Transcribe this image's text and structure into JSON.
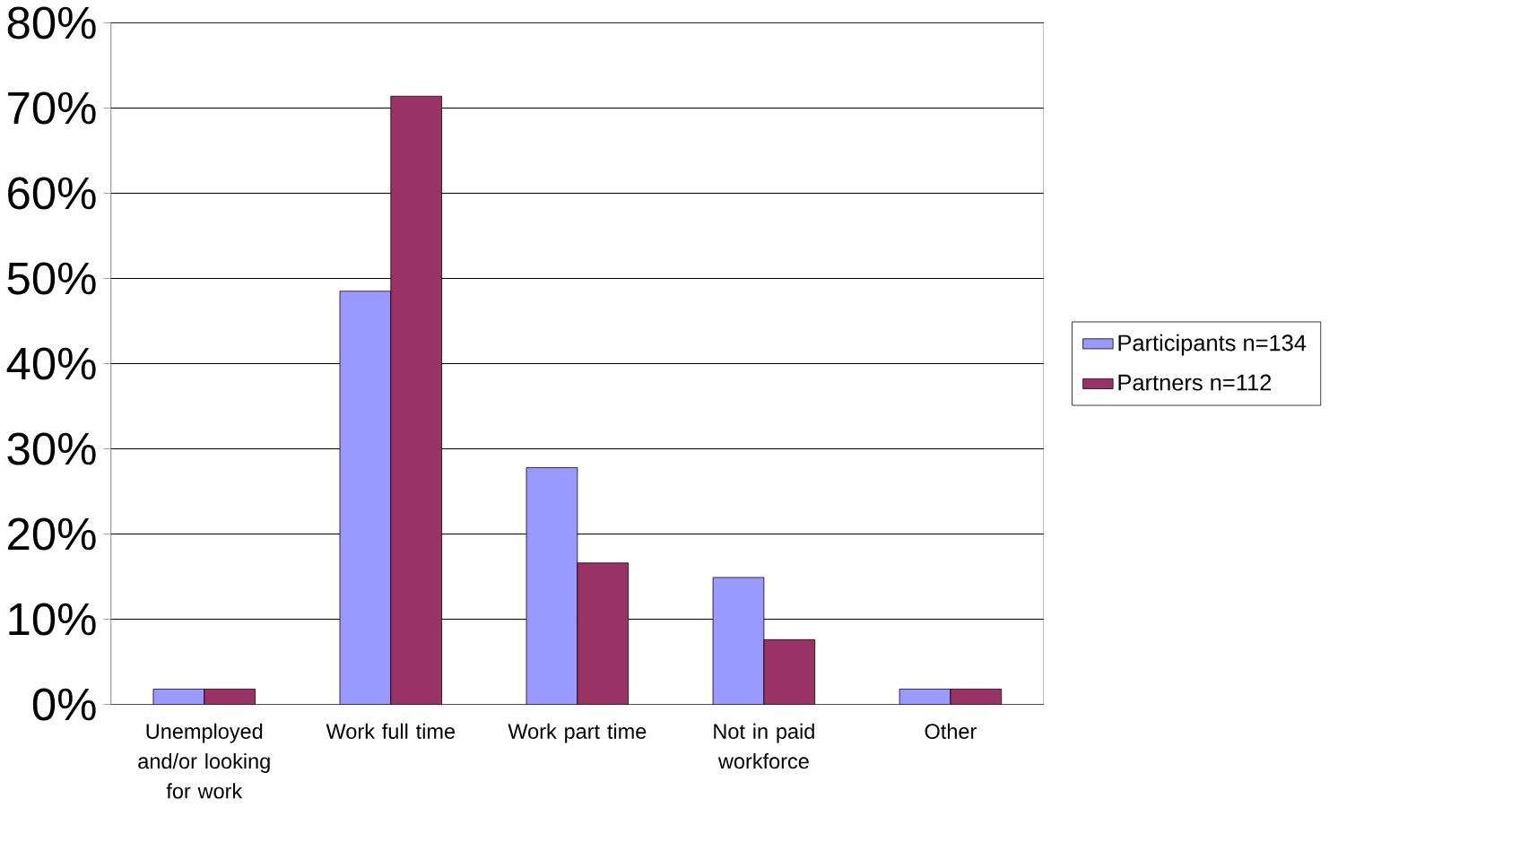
{
  "chart_data": {
    "type": "bar",
    "categories": [
      "Unemployed and/or looking for work",
      "Work full time",
      "Work part time",
      "Not in paid workforce",
      "Other"
    ],
    "series": [
      {
        "name": "Participants n=134",
        "color": "#9999ff",
        "values": [
          1.8,
          48.5,
          27.8,
          14.9,
          1.8
        ]
      },
      {
        "name": "Partners n=112",
        "color": "#993366",
        "values": [
          1.8,
          71.4,
          16.6,
          7.6,
          1.8
        ]
      }
    ],
    "ylim": [
      0,
      80
    ],
    "yticks": [
      {
        "value": 0,
        "label": "0%"
      },
      {
        "value": 10,
        "label": "10%"
      },
      {
        "value": 20,
        "label": "20%"
      },
      {
        "value": 30,
        "label": "30%"
      },
      {
        "value": 40,
        "label": "40%"
      },
      {
        "value": 50,
        "label": "50%"
      },
      {
        "value": 60,
        "label": "60%"
      },
      {
        "value": 70,
        "label": "70%"
      },
      {
        "value": 80,
        "label": "80%"
      }
    ],
    "grid": "y",
    "legend": "right"
  }
}
